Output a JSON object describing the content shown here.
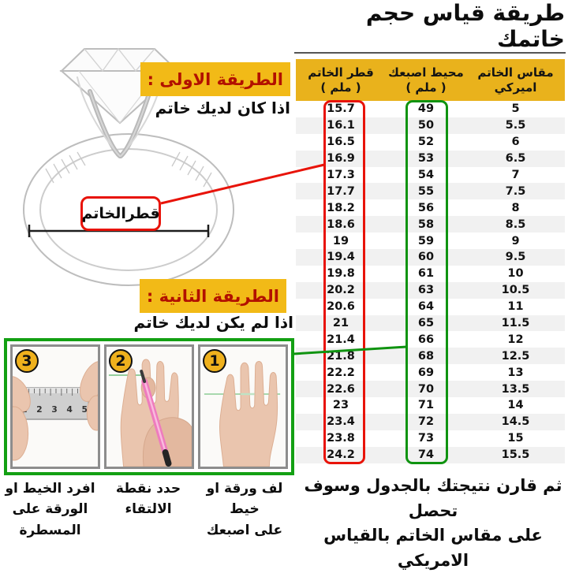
{
  "title": "طريقة قياس حجم خاتمك",
  "method1": {
    "label": "الطريقة الاولى :",
    "subtitle": "اذا كان لديك خاتم"
  },
  "method2": {
    "label": "الطريقة الثانية :",
    "subtitle": "اذا لم يكن لديك خاتم"
  },
  "ring_diameter_label": "قطرالخاتم",
  "table": {
    "headers": [
      {
        "line1": "قطر الخاتم",
        "line2": "( ملم )"
      },
      {
        "line1": "محيط اصبعك",
        "line2": "( ملم )"
      },
      {
        "line1": "مقاس الخاتم",
        "line2": "اميركي"
      }
    ],
    "rows": [
      [
        "15.7",
        "49",
        "5"
      ],
      [
        "16.1",
        "50",
        "5.5"
      ],
      [
        "16.5",
        "52",
        "6"
      ],
      [
        "16.9",
        "53",
        "6.5"
      ],
      [
        "17.3",
        "54",
        "7"
      ],
      [
        "17.7",
        "55",
        "7.5"
      ],
      [
        "18.2",
        "56",
        "8"
      ],
      [
        "18.6",
        "58",
        "8.5"
      ],
      [
        "19",
        "59",
        "9"
      ],
      [
        "19.4",
        "60",
        "9.5"
      ],
      [
        "19.8",
        "61",
        "10"
      ],
      [
        "20.2",
        "63",
        "10.5"
      ],
      [
        "20.6",
        "64",
        "11"
      ],
      [
        "21",
        "65",
        "11.5"
      ],
      [
        "21.4",
        "66",
        "12"
      ],
      [
        "21.8",
        "68",
        "12.5"
      ],
      [
        "22.2",
        "69",
        "13"
      ],
      [
        "22.6",
        "70",
        "13.5"
      ],
      [
        "23",
        "71",
        "14"
      ],
      [
        "23.4",
        "72",
        "14.5"
      ],
      [
        "23.8",
        "73",
        "15"
      ],
      [
        "24.2",
        "74",
        "15.5"
      ]
    ]
  },
  "steps": [
    {
      "number": "1",
      "caption_line1": "لف ورقة او خيط",
      "caption_line2": "على اصبعك"
    },
    {
      "number": "2",
      "caption_line1": "حدد نقطة",
      "caption_line2": "الالتقاء"
    },
    {
      "number": "3",
      "caption_line1": "افرد الخيط او",
      "caption_line2": "الورقة على المسطرة",
      "ruler_numbers": "1 2 3 4 5"
    }
  ],
  "footer": {
    "line1": "ثم قارن نتيجتك بالجدول وسوف تحصل",
    "line2": "على مقاس الخاتم بالقياس الامريكي"
  },
  "colors": {
    "header_yellow": "#e9b21c",
    "highlight_yellow": "#f2ba17",
    "heading_red_text": "#b21000",
    "accent_red": "#e81309",
    "accent_green": "#0f9310",
    "stripe_gray": "#f1f1f1"
  }
}
